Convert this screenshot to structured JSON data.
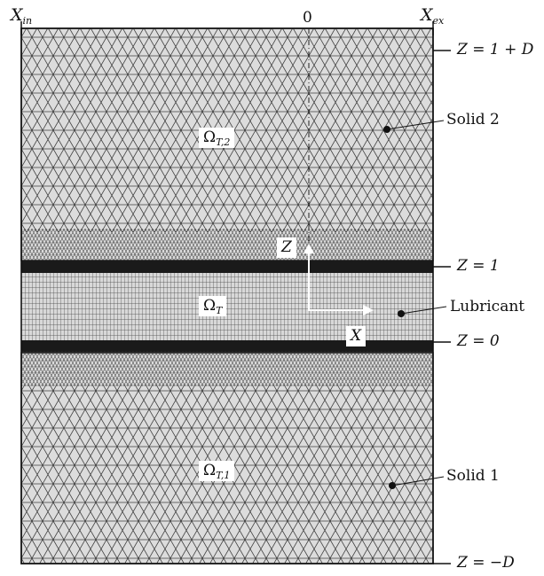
{
  "figure": {
    "x_in": {
      "main": "X",
      "sub": "in"
    },
    "x_ex": {
      "main": "X",
      "sub": "ex"
    },
    "origin": "0",
    "z_top": "Z = 1 + D",
    "z_one": "Z = 1",
    "z_zero": "Z = 0",
    "z_bottom": "Z = −D",
    "omega_t2": {
      "main": "Ω",
      "sub": "T,2"
    },
    "omega_t": {
      "main": "Ω",
      "sub": "T"
    },
    "omega_t1": {
      "main": "Ω",
      "sub": "T,1"
    },
    "axis_z": "Z",
    "axis_x": "X",
    "solid_2": "Solid 2",
    "lubricant": "Lubricant",
    "solid_1": "Solid 1"
  },
  "colors": {
    "mesh_fill": "#dcdcdc",
    "mesh_line": "#3a3a3a",
    "band": "#1a1a1a",
    "arrow": "#ffffff"
  }
}
